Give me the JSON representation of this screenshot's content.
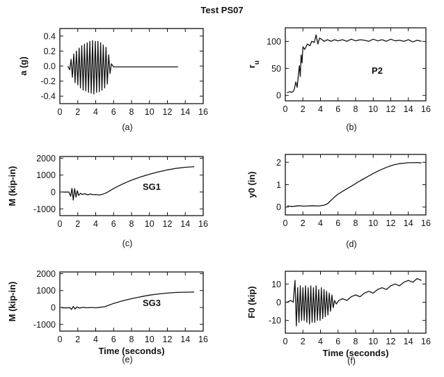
{
  "figure": {
    "title": "Test PS07"
  },
  "chart_data": [
    {
      "id": "a",
      "type": "line",
      "caption": "(a)",
      "title": "",
      "xlabel": "",
      "ylabel": "a (g)",
      "annotation": "",
      "xlim": [
        0,
        16
      ],
      "ylim": [
        -0.5,
        0.5
      ],
      "xticks": [
        "0",
        "2",
        "4",
        "6",
        "8",
        "10",
        "12",
        "14",
        "16"
      ],
      "yticks": [
        {
          "value": 0.4,
          "label": "0.4"
        },
        {
          "value": 0.2,
          "label": "0.2"
        },
        {
          "value": 0.0,
          "label": "0.0"
        },
        {
          "value": -0.2,
          "label": "-0.2"
        },
        {
          "value": -0.4,
          "label": "-0.4"
        }
      ],
      "series": [
        {
          "x": [
            0.9,
            1.1,
            1.25,
            1.4,
            1.55,
            1.7,
            1.85,
            2.0,
            2.15,
            2.3,
            2.45,
            2.6,
            2.75,
            2.9,
            3.05,
            3.2,
            3.35,
            3.5,
            3.65,
            3.8,
            3.95,
            4.1,
            4.25,
            4.4,
            4.55,
            4.7,
            4.85,
            5.0,
            5.15,
            5.3,
            5.45,
            5.6,
            5.75,
            6.0,
            7,
            8,
            9,
            10,
            11,
            12,
            13.2
          ],
          "y": [
            0.0,
            -0.05,
            0.09,
            -0.15,
            0.16,
            -0.22,
            0.2,
            -0.25,
            0.24,
            -0.29,
            0.27,
            -0.32,
            0.29,
            -0.33,
            0.31,
            -0.35,
            0.33,
            -0.36,
            0.34,
            -0.37,
            0.33,
            -0.35,
            0.33,
            -0.34,
            0.31,
            -0.32,
            0.28,
            -0.29,
            0.25,
            -0.24,
            0.15,
            -0.1,
            0.03,
            -0.01,
            -0.01,
            -0.01,
            -0.01,
            -0.01,
            -0.01,
            -0.01,
            -0.01
          ]
        }
      ]
    },
    {
      "id": "b",
      "type": "line",
      "caption": "(b)",
      "title": "",
      "xlabel": "",
      "ylabel": "r_u",
      "annotation": "P2",
      "xlim": [
        0,
        16
      ],
      "ylim": [
        -10,
        125
      ],
      "xticks": [
        "0",
        "2",
        "4",
        "6",
        "8",
        "10",
        "12",
        "14",
        "16"
      ],
      "yticks": [
        {
          "value": 100,
          "label": "100"
        },
        {
          "value": 50,
          "label": "50"
        },
        {
          "value": 0,
          "label": "0"
        }
      ],
      "series": [
        {
          "x": [
            0.2,
            0.5,
            0.8,
            1.0,
            1.2,
            1.35,
            1.5,
            1.6,
            1.7,
            1.8,
            1.9,
            2.0,
            2.2,
            2.5,
            2.8,
            3.0,
            3.3,
            3.5,
            3.7,
            3.9,
            4.1,
            4.4,
            4.8,
            5.2,
            5.6,
            6,
            6.5,
            7,
            7.5,
            8,
            8.5,
            9,
            9.5,
            10,
            10.5,
            11,
            11.5,
            12,
            12.5,
            13,
            13.5,
            14,
            14.5,
            15,
            15.5
          ],
          "y": [
            5,
            7,
            6,
            10,
            25,
            15,
            40,
            55,
            35,
            75,
            60,
            90,
            85,
            95,
            92,
            100,
            98,
            112,
            95,
            106,
            104,
            100,
            103,
            100,
            103,
            101,
            103,
            100,
            104,
            101,
            103,
            102,
            100,
            104,
            101,
            103,
            100,
            104,
            101,
            102,
            100,
            103,
            99,
            102,
            100
          ]
        }
      ]
    },
    {
      "id": "c",
      "type": "line",
      "caption": "(c)",
      "title": "",
      "xlabel": "",
      "ylabel": "M (kip-in)",
      "annotation": "SG1",
      "xlim": [
        0,
        16
      ],
      "ylim": [
        -1400,
        2100
      ],
      "xticks": [
        "0",
        "2",
        "4",
        "6",
        "8",
        "10",
        "12",
        "14",
        "16"
      ],
      "yticks": [
        {
          "value": 2000,
          "label": "2000"
        },
        {
          "value": 1000,
          "label": "1000"
        },
        {
          "value": 0,
          "label": "0"
        },
        {
          "value": -1000,
          "label": "-1000"
        }
      ],
      "series": [
        {
          "x": [
            0.2,
            0.6,
            1.0,
            1.2,
            1.35,
            1.5,
            1.65,
            1.8,
            1.95,
            2.1,
            2.3,
            2.5,
            2.8,
            3.1,
            3.4,
            3.7,
            4.0,
            4.4,
            4.8,
            5.2,
            5.6,
            6,
            6.5,
            7,
            7.5,
            8,
            9,
            10,
            11,
            12,
            13,
            14,
            15
          ],
          "y": [
            0,
            -10,
            0,
            -250,
            220,
            -480,
            200,
            -300,
            80,
            -200,
            -80,
            -150,
            -100,
            -170,
            -120,
            -160,
            -150,
            -180,
            -130,
            -50,
            80,
            200,
            340,
            470,
            590,
            700,
            890,
            1050,
            1190,
            1310,
            1400,
            1460,
            1500
          ]
        }
      ]
    },
    {
      "id": "d",
      "type": "line",
      "caption": "(d)",
      "title": "",
      "xlabel": "",
      "ylabel": "y0 (in)",
      "annotation": "",
      "xlim": [
        0,
        16
      ],
      "ylim": [
        -0.35,
        2.35
      ],
      "xticks": [
        "0",
        "2",
        "4",
        "6",
        "8",
        "10",
        "12",
        "14",
        "16"
      ],
      "yticks": [
        {
          "value": 2,
          "label": "2"
        },
        {
          "value": 1,
          "label": "1"
        },
        {
          "value": 0,
          "label": "0"
        }
      ],
      "series": [
        {
          "x": [
            0.2,
            0.8,
            1.5,
            2.2,
            3.0,
            3.8,
            4.4,
            4.8,
            5.2,
            5.6,
            6.0,
            6.5,
            7,
            7.5,
            8,
            8.5,
            9,
            9.5,
            10,
            10.5,
            11,
            11.5,
            12,
            12.5,
            13,
            13.5,
            14,
            14.5,
            15,
            15.5
          ],
          "y": [
            0.05,
            0.03,
            0.06,
            0.04,
            0.06,
            0.05,
            0.08,
            0.15,
            0.3,
            0.45,
            0.58,
            0.7,
            0.82,
            0.93,
            1.05,
            1.17,
            1.28,
            1.39,
            1.5,
            1.6,
            1.69,
            1.77,
            1.84,
            1.9,
            1.94,
            1.96,
            1.98,
            1.98,
            1.99,
            1.97
          ]
        }
      ]
    },
    {
      "id": "e",
      "type": "line",
      "caption": "(e)",
      "title": "",
      "xlabel": "Time (seconds)",
      "ylabel": "M (kip-in)",
      "annotation": "SG3",
      "xlim": [
        0,
        16
      ],
      "ylim": [
        -1400,
        2100
      ],
      "xticks": [
        "0",
        "2",
        "4",
        "6",
        "8",
        "10",
        "12",
        "14",
        "16"
      ],
      "yticks": [
        {
          "value": 2000,
          "label": "2000"
        },
        {
          "value": 1000,
          "label": "1000"
        },
        {
          "value": 0,
          "label": "0"
        },
        {
          "value": -1000,
          "label": "-1000"
        }
      ],
      "series": [
        {
          "x": [
            0.2,
            0.7,
            1.1,
            1.3,
            1.5,
            1.7,
            1.9,
            2.2,
            2.6,
            3.0,
            3.5,
            4.0,
            4.5,
            5.0,
            5.5,
            6,
            7,
            8,
            9,
            10,
            11,
            12,
            13,
            14,
            15
          ],
          "y": [
            -20,
            -30,
            -10,
            -120,
            60,
            -90,
            30,
            -40,
            10,
            -20,
            0,
            -20,
            10,
            40,
            140,
            240,
            390,
            520,
            630,
            730,
            800,
            850,
            890,
            900,
            910
          ]
        }
      ]
    },
    {
      "id": "f",
      "type": "line",
      "caption": "(f)",
      "title": "",
      "xlabel": "Time (seconds)",
      "ylabel": "F0 (kip)",
      "annotation": "",
      "xlim": [
        0,
        16
      ],
      "ylim": [
        -17,
        17
      ],
      "xticks": [
        "0",
        "2",
        "4",
        "6",
        "8",
        "10",
        "12",
        "14",
        "16"
      ],
      "yticks": [
        {
          "value": 10,
          "label": "10"
        },
        {
          "value": 0,
          "label": "0"
        },
        {
          "value": -10,
          "label": "-10"
        }
      ],
      "series": [
        {
          "x": [
            0.2,
            0.6,
            0.9,
            1.1,
            1.25,
            1.4,
            1.55,
            1.7,
            1.85,
            2.0,
            2.15,
            2.3,
            2.45,
            2.6,
            2.75,
            2.9,
            3.05,
            3.2,
            3.35,
            3.5,
            3.65,
            3.8,
            3.95,
            4.1,
            4.25,
            4.4,
            4.55,
            4.7,
            4.85,
            5.0,
            5.15,
            5.3,
            5.45,
            5.6,
            5.8,
            6.1,
            6.5,
            7,
            7.5,
            8,
            8.5,
            9,
            9.5,
            10,
            10.5,
            11,
            11.5,
            12,
            12.5,
            13,
            13.5,
            14,
            14.5,
            15,
            15.5
          ],
          "y": [
            0,
            1,
            0,
            12,
            -13,
            8,
            -11,
            9,
            -10,
            8,
            -10,
            9,
            -11,
            8,
            -12,
            9,
            -11,
            8,
            -11,
            9,
            -10,
            7,
            -10,
            8,
            -9,
            7,
            -8,
            6,
            -7,
            5,
            -5,
            4,
            -3,
            1,
            -1,
            1,
            2,
            1,
            3,
            4,
            3,
            5,
            6,
            5,
            7,
            8,
            7,
            9,
            10,
            9,
            11,
            12,
            11,
            13,
            12
          ]
        }
      ]
    }
  ]
}
